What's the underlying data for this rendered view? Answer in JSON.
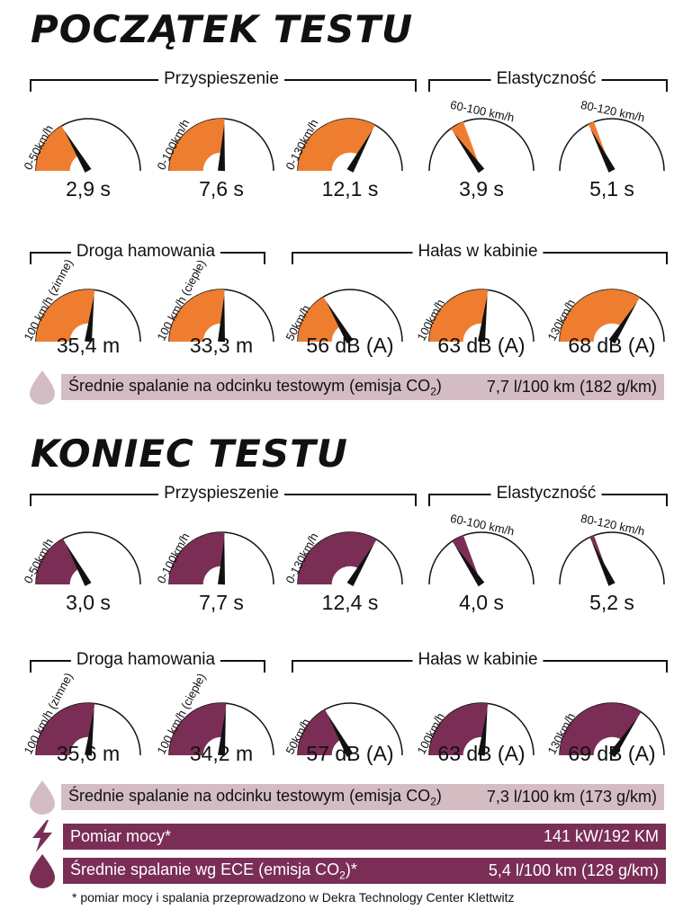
{
  "colors": {
    "start": "#ee7d30",
    "end": "#7a2e55",
    "light_bar": "#d4bcc3",
    "dark_bar": "#7a2e55"
  },
  "sections": [
    {
      "title": "POCZĄTEK TESTU",
      "accel_label": "Przyspieszenie",
      "elast_label": "Elastyczność",
      "brake_label": "Droga hamowania",
      "noise_label": "Hałas w kabinie",
      "accel": [
        {
          "label": "0-50km/h",
          "value": "2,9 s",
          "fraction": 0.33
        },
        {
          "label": "0-100km/h",
          "value": "7,6 s",
          "fraction": 0.52
        },
        {
          "label": "0-130km/h",
          "value": "12,1 s",
          "fraction": 0.66
        }
      ],
      "elast": [
        {
          "label": "60-100 km/h",
          "value": "3,9 s",
          "fraction": 0.3
        },
        {
          "label": "80-120 km/h",
          "value": "5,1 s",
          "fraction": 0.35
        }
      ],
      "brake": [
        {
          "label": "100 km/h (zimne)",
          "value": "35,4 m",
          "fraction": 0.54
        },
        {
          "label": "100 km/h (ciepłe)",
          "value": "33,3 m",
          "fraction": 0.52
        }
      ],
      "noise": [
        {
          "label": "50km/h",
          "value": "56 dB (A)",
          "fraction": 0.33
        },
        {
          "label": "100km/h",
          "value": "63 dB (A)",
          "fraction": 0.54
        },
        {
          "label": "130km/h",
          "value": "68 dB (A)",
          "fraction": 0.68
        }
      ],
      "fuel": {
        "label": "Średnie spalanie na odcinku testowym (emisja CO",
        "sub": "2",
        "close": ")",
        "value": "7,7 l/100 km (182 g/km)"
      }
    },
    {
      "title": "KONIEC TESTU",
      "accel_label": "Przyspieszenie",
      "elast_label": "Elastyczność",
      "brake_label": "Droga hamowania",
      "noise_label": "Hałas w kabinie",
      "accel": [
        {
          "label": "0-50km/h",
          "value": "3,0 s",
          "fraction": 0.34
        },
        {
          "label": "0-100km/h",
          "value": "7,7 s",
          "fraction": 0.52
        },
        {
          "label": "0-130km/h",
          "value": "12,4 s",
          "fraction": 0.67
        }
      ],
      "elast": [
        {
          "label": "60-100 km/h",
          "value": "4,0 s",
          "fraction": 0.31
        },
        {
          "label": "80-120 km/h",
          "value": "5,2 s",
          "fraction": 0.36
        }
      ],
      "brake": [
        {
          "label": "100 km/h (zimne)",
          "value": "35,6 m",
          "fraction": 0.54
        },
        {
          "label": "100 km/h (ciepłe)",
          "value": "34,2 m",
          "fraction": 0.53
        }
      ],
      "noise": [
        {
          "label": "50km/h",
          "value": "57 dB (A)",
          "fraction": 0.34
        },
        {
          "label": "100km/h",
          "value": "63 dB (A)",
          "fraction": 0.54
        },
        {
          "label": "130km/h",
          "value": "69 dB (A)",
          "fraction": 0.69
        }
      ],
      "fuel": {
        "label": "Średnie spalanie na odcinku testowym (emisja CO",
        "sub": "2",
        "close": ")",
        "value": "7,3 l/100 km (173 g/km)"
      }
    }
  ],
  "power": {
    "label": "Pomiar mocy*",
    "value": "141 kW/192 KM"
  },
  "ece": {
    "label": "Średnie spalanie wg ECE (emisja CO",
    "sub": "2",
    "close": ")*",
    "value": "5,4 l/100 km (128 g/km)"
  },
  "footnote": "* pomiar mocy i spalania przeprowadzono w Dekra Technology Center Klettwitz"
}
